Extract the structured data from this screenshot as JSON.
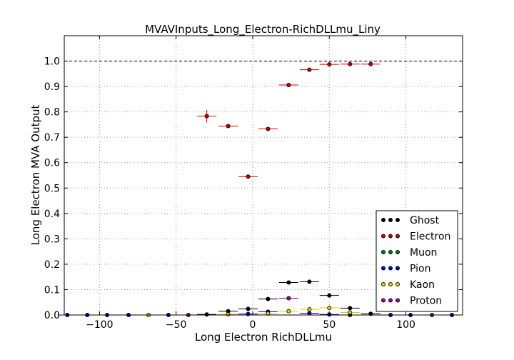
{
  "chart_data": {
    "type": "scatter",
    "title": "MVAVInputs_Long_Electron-RichDLLmu_Liny",
    "xlabel": "Long Electron RichDLLmu",
    "ylabel": "Long Electron MVA Output",
    "xlim": [
      -123,
      137
    ],
    "ylim": [
      0,
      1.1
    ],
    "xticks": [
      -100,
      -50,
      0,
      50,
      100
    ],
    "xtick_labels": [
      "−100",
      "−50",
      "0",
      "50",
      "100"
    ],
    "yticks": [
      0.0,
      0.1,
      0.2,
      0.3,
      0.4,
      0.5,
      0.6,
      0.7,
      0.8,
      0.9,
      1.0
    ],
    "ytick_labels": [
      "0.0",
      "0.1",
      "0.2",
      "0.3",
      "0.4",
      "0.5",
      "0.6",
      "0.7",
      "0.8",
      "0.9",
      "1.0"
    ],
    "grid": true,
    "reference_line_y": 1.0,
    "legend_position": "lower-right",
    "series": [
      {
        "name": "Ghost",
        "color": "#000000",
        "points": [
          {
            "x": -16,
            "y": 0.015,
            "xerr": 6.3
          },
          {
            "x": -3,
            "y": 0.024,
            "xerr": 6.3
          },
          {
            "x": 10,
            "y": 0.063,
            "xerr": 6.3
          },
          {
            "x": 23.5,
            "y": 0.128,
            "xerr": 6.3
          },
          {
            "x": 37,
            "y": 0.131,
            "xerr": 6.3
          },
          {
            "x": 50,
            "y": 0.077,
            "xerr": 6.3
          },
          {
            "x": 63.5,
            "y": 0.027,
            "xerr": 6.3
          },
          {
            "x": 77,
            "y": 0.005,
            "xerr": 6.3
          },
          {
            "x": -30,
            "y": 0.002,
            "xerr": 6.3
          }
        ]
      },
      {
        "name": "Electron",
        "color": "#cc0000",
        "points": [
          {
            "x": -30,
            "y": 0.783,
            "xerr": 6.3,
            "yerr": 0.025
          },
          {
            "x": -16,
            "y": 0.744,
            "xerr": 6.3,
            "yerr": 0.007
          },
          {
            "x": -3,
            "y": 0.545,
            "xerr": 6.3,
            "yerr": 0.007
          },
          {
            "x": 10,
            "y": 0.733,
            "xerr": 6.3,
            "yerr": 0.006
          },
          {
            "x": 23.5,
            "y": 0.906,
            "xerr": 6.3,
            "yerr": 0.005
          },
          {
            "x": 37,
            "y": 0.966,
            "xerr": 6.3,
            "yerr": 0.004
          },
          {
            "x": 50,
            "y": 0.987,
            "xerr": 6.3,
            "yerr": 0.003
          },
          {
            "x": 63.5,
            "y": 0.988,
            "xerr": 6.3,
            "yerr": 0.003
          },
          {
            "x": 77,
            "y": 0.988,
            "xerr": 6.3,
            "yerr": 0.003
          }
        ]
      },
      {
        "name": "Muon",
        "color": "#007700",
        "points": [
          {
            "x": 117,
            "y": 0.0,
            "xerr": 6.3
          }
        ]
      },
      {
        "name": "Pion",
        "color": "#0000cc",
        "points": [
          {
            "x": -121,
            "y": 0.0,
            "xerr": 6.3
          },
          {
            "x": -108,
            "y": 0.0,
            "xerr": 6.3
          },
          {
            "x": -95,
            "y": 0.0,
            "xerr": 6.3
          },
          {
            "x": -81,
            "y": 0.0,
            "xerr": 6.3
          },
          {
            "x": -55,
            "y": 0.0,
            "xerr": 6.3
          },
          {
            "x": -3,
            "y": 0.004,
            "xerr": 6.3
          },
          {
            "x": 10,
            "y": 0.013,
            "xerr": 6.3
          },
          {
            "x": 37,
            "y": 0.007,
            "xerr": 6.3
          },
          {
            "x": 50,
            "y": 0.002,
            "xerr": 6.3
          },
          {
            "x": 63.5,
            "y": 0.0,
            "xerr": 6.3
          },
          {
            "x": 90,
            "y": 0.0,
            "xerr": 6.3
          },
          {
            "x": 103,
            "y": 0.0,
            "xerr": 6.3
          },
          {
            "x": 130,
            "y": 0.0,
            "xerr": 6.3
          }
        ]
      },
      {
        "name": "Kaon",
        "color": "#ddcc00",
        "points": [
          {
            "x": -68,
            "y": 0.0,
            "xerr": 6.3
          },
          {
            "x": -16,
            "y": 0.003,
            "xerr": 6.3
          },
          {
            "x": 10,
            "y": 0.006,
            "xerr": 6.3
          },
          {
            "x": 23.5,
            "y": 0.015,
            "xerr": 6.3
          },
          {
            "x": 37,
            "y": 0.022,
            "xerr": 6.3
          },
          {
            "x": 50,
            "y": 0.028,
            "xerr": 6.3
          },
          {
            "x": 63.5,
            "y": 0.01,
            "xerr": 6.3
          }
        ]
      },
      {
        "name": "Proton",
        "color": "#990099",
        "points": [
          {
            "x": -42,
            "y": 0.0,
            "xerr": 6.3
          },
          {
            "x": 23.5,
            "y": 0.066,
            "xerr": 6.3
          }
        ]
      }
    ]
  }
}
